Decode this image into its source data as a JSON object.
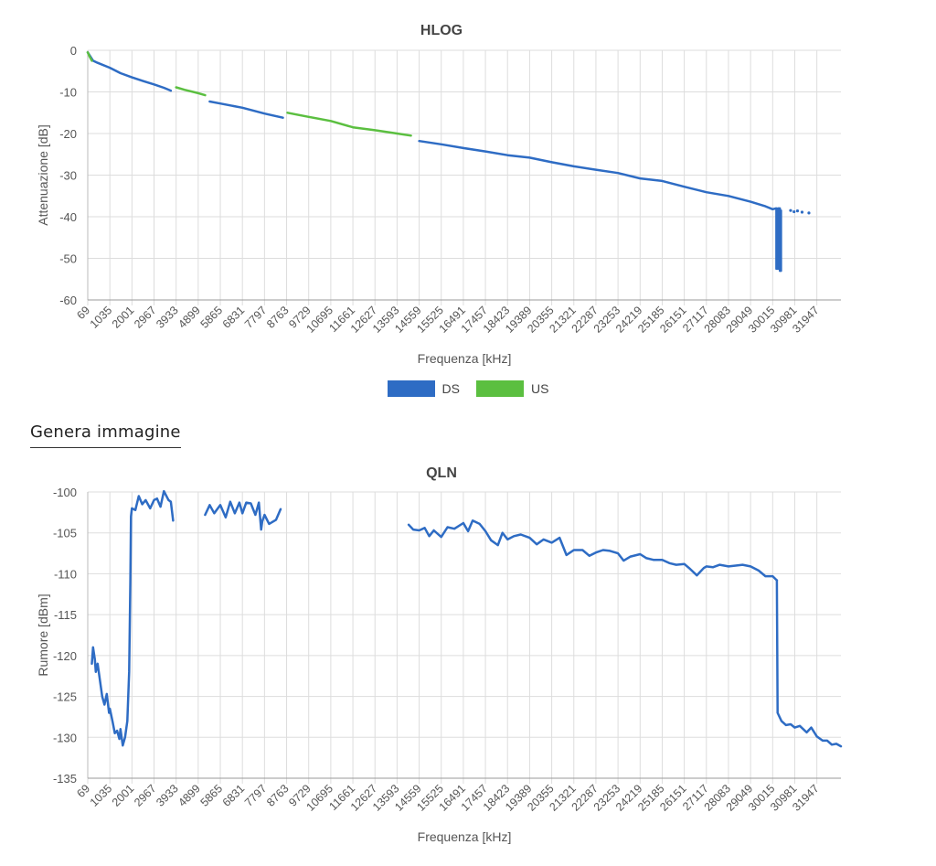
{
  "action_button": {
    "label": "Genera immagine"
  },
  "legend": [
    {
      "label": "DS",
      "color": "#2e6cc4"
    },
    {
      "label": "US",
      "color": "#5bbf40"
    }
  ],
  "x_ticks": [
    "69",
    "1035",
    "2001",
    "2967",
    "3933",
    "4899",
    "5865",
    "6831",
    "7797",
    "8763",
    "9729",
    "10695",
    "11661",
    "12627",
    "13593",
    "14559",
    "15525",
    "16491",
    "17457",
    "18423",
    "19389",
    "20355",
    "21321",
    "22287",
    "23253",
    "24219",
    "25185",
    "26151",
    "27117",
    "28083",
    "29049",
    "30015",
    "30981",
    "31947"
  ],
  "chart_data": [
    {
      "type": "line",
      "title": "HLOG",
      "xlabel": "Frequenza [kHz]",
      "ylabel": "Attenuazione [dB]",
      "xlim": [
        69,
        33000
      ],
      "ylim": [
        -60,
        0
      ],
      "y_ticks": [
        0,
        -10,
        -20,
        -30,
        -40,
        -50,
        -60
      ],
      "grid": true,
      "legend": "bottom-center",
      "series": [
        {
          "name": "DS",
          "color": "#2e6cc4",
          "segments": [
            [
              [
                69,
                -0.5
              ],
              [
                300,
                -2.5
              ],
              [
                500,
                -3
              ],
              [
                1035,
                -4.2
              ],
              [
                1500,
                -5.5
              ],
              [
                2001,
                -6.5
              ],
              [
                2500,
                -7.4
              ],
              [
                2967,
                -8.2
              ],
              [
                3400,
                -9
              ],
              [
                3700,
                -9.7
              ]
            ],
            [
              [
                5400,
                -12.3
              ],
              [
                5865,
                -12.8
              ],
              [
                6831,
                -13.8
              ],
              [
                7797,
                -15.2
              ],
              [
                8600,
                -16.2
              ]
            ],
            [
              [
                14559,
                -21.8
              ],
              [
                15525,
                -22.6
              ],
              [
                16491,
                -23.5
              ],
              [
                17457,
                -24.3
              ],
              [
                18423,
                -25.2
              ],
              [
                19389,
                -25.8
              ],
              [
                20355,
                -26.9
              ],
              [
                21321,
                -27.9
              ],
              [
                22287,
                -28.7
              ],
              [
                23253,
                -29.5
              ],
              [
                24219,
                -30.8
              ],
              [
                25185,
                -31.4
              ],
              [
                26151,
                -32.8
              ],
              [
                27117,
                -34.1
              ],
              [
                28083,
                -35
              ],
              [
                29049,
                -36.4
              ],
              [
                29700,
                -37.5
              ],
              [
                30015,
                -38.2
              ],
              [
                30150,
                -38
              ]
            ],
            [
              [
                30180,
                -38
              ],
              [
                30180,
                -52.5
              ],
              [
                30250,
                -52.5
              ],
              [
                30250,
                -38
              ],
              [
                30330,
                -38
              ],
              [
                30330,
                -53
              ],
              [
                30380,
                -53
              ],
              [
                30380,
                -38.5
              ]
            ]
          ],
          "points": [
            [
              30800,
              -38.5
            ],
            [
              30950,
              -38.8
            ],
            [
              31100,
              -38.6
            ],
            [
              31300,
              -38.9
            ],
            [
              31600,
              -39.1
            ]
          ]
        },
        {
          "name": "US",
          "color": "#5bbf40",
          "segments": [
            [
              [
                69,
                -0.5
              ],
              [
                150,
                -1.5
              ],
              [
                250,
                -2.5
              ]
            ],
            [
              [
                3933,
                -8.9
              ],
              [
                4300,
                -9.5
              ],
              [
                4899,
                -10.3
              ],
              [
                5200,
                -10.8
              ]
            ],
            [
              [
                8800,
                -15
              ],
              [
                9729,
                -16
              ],
              [
                10695,
                -17
              ],
              [
                11661,
                -18.5
              ],
              [
                12627,
                -19.2
              ],
              [
                13593,
                -20
              ],
              [
                14200,
                -20.5
              ]
            ]
          ]
        }
      ]
    },
    {
      "type": "line",
      "title": "QLN",
      "xlabel": "Frequenza [kHz]",
      "ylabel": "Rumore [dBm]",
      "xlim": [
        69,
        33000
      ],
      "ylim": [
        -135,
        -100
      ],
      "y_ticks": [
        -100,
        -105,
        -110,
        -115,
        -120,
        -125,
        -130,
        -135
      ],
      "grid": true,
      "series": [
        {
          "name": "DS",
          "color": "#2e6cc4",
          "segments": [
            [
              [
                250,
                -121
              ],
              [
                300,
                -119
              ],
              [
                380,
                -120.5
              ],
              [
                420,
                -122
              ],
              [
                500,
                -121
              ],
              [
                600,
                -123
              ],
              [
                700,
                -125
              ],
              [
                800,
                -126
              ],
              [
                900,
                -124.7
              ],
              [
                1000,
                -127
              ],
              [
                1035,
                -126.5
              ],
              [
                1150,
                -128
              ],
              [
                1250,
                -129.5
              ],
              [
                1350,
                -129.2
              ],
              [
                1450,
                -130.2
              ],
              [
                1500,
                -129
              ],
              [
                1600,
                -131
              ],
              [
                1700,
                -130
              ],
              [
                1800,
                -128
              ],
              [
                1880,
                -122
              ],
              [
                1930,
                -111
              ],
              [
                1960,
                -103
              ],
              [
                2001,
                -102
              ],
              [
                2150,
                -102.2
              ],
              [
                2300,
                -100.5
              ],
              [
                2450,
                -101.5
              ],
              [
                2600,
                -101
              ],
              [
                2800,
                -102
              ],
              [
                2967,
                -101
              ],
              [
                3100,
                -100.8
              ],
              [
                3250,
                -101.8
              ],
              [
                3400,
                -99.9
              ],
              [
                3600,
                -101
              ],
              [
                3700,
                -101.2
              ],
              [
                3800,
                -103.5
              ]
            ],
            [
              [
                5200,
                -102.8
              ],
              [
                5400,
                -101.6
              ],
              [
                5600,
                -102.6
              ],
              [
                5865,
                -101.6
              ],
              [
                6100,
                -103.1
              ],
              [
                6300,
                -101.2
              ],
              [
                6500,
                -102.6
              ],
              [
                6700,
                -101.3
              ],
              [
                6831,
                -102.6
              ],
              [
                7000,
                -101.3
              ],
              [
                7200,
                -101.4
              ],
              [
                7400,
                -102.8
              ],
              [
                7550,
                -101.3
              ],
              [
                7650,
                -104.6
              ],
              [
                7700,
                -103.6
              ],
              [
                7797,
                -102.8
              ],
              [
                8000,
                -103.9
              ],
              [
                8300,
                -103.4
              ],
              [
                8500,
                -102.1
              ]
            ],
            [
              [
                14100,
                -104
              ],
              [
                14300,
                -104.6
              ],
              [
                14559,
                -104.7
              ],
              [
                14800,
                -104.4
              ],
              [
                15000,
                -105.4
              ],
              [
                15200,
                -104.7
              ],
              [
                15525,
                -105.5
              ],
              [
                15800,
                -104.3
              ],
              [
                16100,
                -104.5
              ],
              [
                16491,
                -103.8
              ],
              [
                16700,
                -104.8
              ],
              [
                16900,
                -103.5
              ],
              [
                17200,
                -103.9
              ],
              [
                17457,
                -104.8
              ],
              [
                17700,
                -105.9
              ],
              [
                18000,
                -106.5
              ],
              [
                18200,
                -105
              ],
              [
                18423,
                -105.8
              ],
              [
                18700,
                -105.4
              ],
              [
                19000,
                -105.2
              ],
              [
                19389,
                -105.6
              ],
              [
                19700,
                -106.4
              ],
              [
                20000,
                -105.8
              ],
              [
                20355,
                -106.2
              ],
              [
                20700,
                -105.6
              ],
              [
                21000,
                -107.7
              ],
              [
                21321,
                -107.1
              ],
              [
                21700,
                -107.1
              ],
              [
                22000,
                -107.8
              ],
              [
                22287,
                -107.4
              ],
              [
                22600,
                -107.1
              ],
              [
                22900,
                -107.2
              ],
              [
                23253,
                -107.5
              ],
              [
                23500,
                -108.4
              ],
              [
                23800,
                -107.9
              ],
              [
                24219,
                -107.6
              ],
              [
                24500,
                -108.1
              ],
              [
                24800,
                -108.3
              ],
              [
                25185,
                -108.3
              ],
              [
                25500,
                -108.7
              ],
              [
                25800,
                -108.9
              ],
              [
                26151,
                -108.8
              ],
              [
                26400,
                -109.4
              ],
              [
                26700,
                -110.2
              ],
              [
                27000,
                -109.3
              ],
              [
                27117,
                -109.1
              ],
              [
                27400,
                -109.2
              ],
              [
                27700,
                -108.9
              ],
              [
                28083,
                -109.1
              ],
              [
                28400,
                -109
              ],
              [
                28700,
                -108.9
              ],
              [
                29049,
                -109.1
              ],
              [
                29400,
                -109.6
              ],
              [
                29700,
                -110.3
              ],
              [
                30015,
                -110.3
              ],
              [
                30200,
                -110.8
              ]
            ],
            [
              [
                30200,
                -110.8
              ],
              [
                30230,
                -127
              ],
              [
                30400,
                -128
              ],
              [
                30600,
                -128.5
              ],
              [
                30800,
                -128.4
              ],
              [
                30981,
                -128.8
              ],
              [
                31200,
                -128.6
              ],
              [
                31500,
                -129.4
              ],
              [
                31700,
                -128.8
              ],
              [
                31947,
                -129.9
              ],
              [
                32200,
                -130.4
              ],
              [
                32400,
                -130.4
              ],
              [
                32600,
                -130.9
              ],
              [
                32800,
                -130.8
              ],
              [
                33000,
                -131.1
              ]
            ]
          ]
        }
      ]
    }
  ]
}
